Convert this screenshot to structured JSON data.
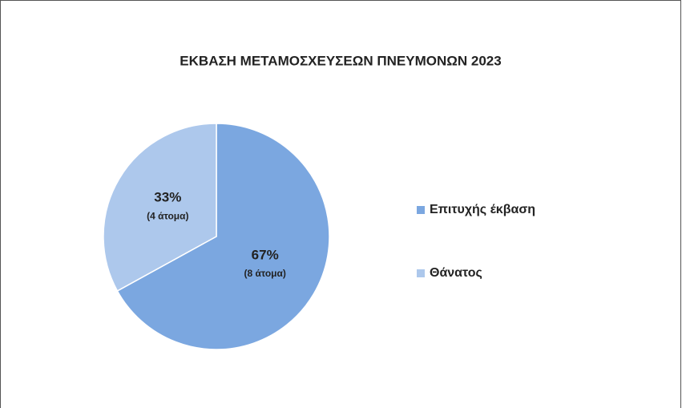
{
  "chart_data": {
    "type": "pie",
    "title": "ΕΚΒΑΣΗ ΜΕΤΑΜΟΣΧΕΥΣΕΩΝ ΠΝΕΥΜΟΝΩΝ 2023",
    "categories": [
      "Επιτυχής έκβαση",
      "Θάνατος"
    ],
    "values": [
      67,
      33
    ],
    "value_labels": [
      "67%",
      "33%"
    ],
    "sublabels": [
      "(8 άτομα)",
      "(4 άτομα)"
    ],
    "colors": [
      "#7ba7e0",
      "#adc8ec"
    ],
    "legend": "right"
  }
}
